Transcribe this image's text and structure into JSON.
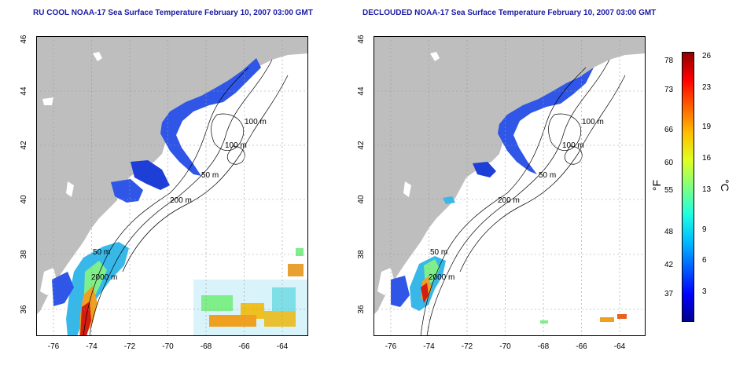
{
  "panels": [
    {
      "id": "left",
      "title": "RU COOL NOAA-17 Sea Surface Temperature February 10, 2007 03:00 GMT",
      "contour_labels": [
        "100 m",
        "100 m",
        "50 m",
        "200 m",
        "50 m",
        "2000 m"
      ]
    },
    {
      "id": "right",
      "title": "DECLOUDED NOAA-17 Sea Surface Temperature February 10, 2007 03:00 GMT",
      "contour_labels": [
        "100 m",
        "100 m",
        "50 m",
        "200 m",
        "50 m",
        "2000 m"
      ]
    }
  ],
  "axes": {
    "lon_ticks": [
      "-76",
      "-74",
      "-72",
      "-70",
      "-68",
      "-66",
      "-64"
    ],
    "lat_ticks": [
      "36",
      "38",
      "40",
      "42",
      "44",
      "46"
    ]
  },
  "colorbar": {
    "fahrenheit_ticks": [
      "78",
      "73",
      "66",
      "60",
      "55",
      "48",
      "42",
      "37"
    ],
    "celsius_ticks": [
      "26",
      "23",
      "19",
      "16",
      "13",
      "9",
      "6",
      "3"
    ],
    "unit_f": "°F",
    "unit_c": "°C",
    "colors": [
      "#00008f",
      "#0000ff",
      "#0060ff",
      "#00bfff",
      "#20ffdf",
      "#80ff80",
      "#dfff20",
      "#ffbf00",
      "#ff6000",
      "#ff0000",
      "#8f0000"
    ]
  }
}
